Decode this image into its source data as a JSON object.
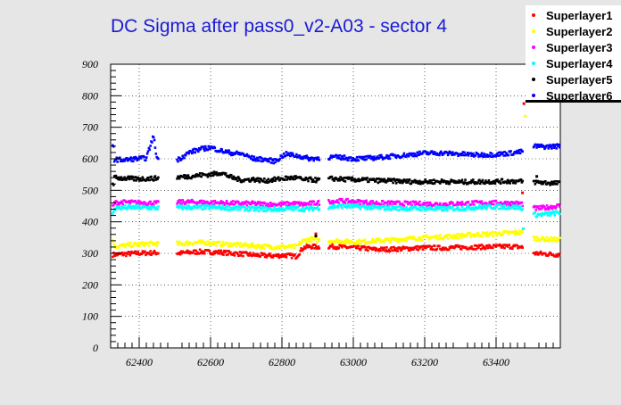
{
  "chart_data": {
    "type": "scatter",
    "title": "DC Sigma after pass0_v2-A03 - sector 4",
    "xlabel": "",
    "ylabel": "",
    "xlim": [
      62320,
      63580
    ],
    "ylim": [
      0,
      900
    ],
    "x_ticks": [
      "62400",
      "62600",
      "62800",
      "63000",
      "63200",
      "63400"
    ],
    "y_ticks": [
      "0",
      "100",
      "200",
      "300",
      "400",
      "500",
      "600",
      "700",
      "800",
      "900"
    ],
    "grid": true,
    "legend_position": "top-right",
    "gaps": [
      [
        62455,
        62505
      ],
      [
        62905,
        62930
      ],
      [
        63475,
        63505
      ]
    ],
    "series": [
      {
        "name": "Superlayer1",
        "color": "#ff0000",
        "points": [
          [
            62330,
            296
          ],
          [
            62360,
            298
          ],
          [
            62390,
            300
          ],
          [
            62420,
            301
          ],
          [
            62450,
            302
          ],
          [
            62510,
            300
          ],
          [
            62540,
            303
          ],
          [
            62570,
            305
          ],
          [
            62600,
            304
          ],
          [
            62630,
            303
          ],
          [
            62660,
            300
          ],
          [
            62690,
            298
          ],
          [
            62720,
            295
          ],
          [
            62750,
            293
          ],
          [
            62780,
            292
          ],
          [
            62810,
            294
          ],
          [
            62840,
            290
          ],
          [
            62860,
            318
          ],
          [
            62880,
            322
          ],
          [
            62900,
            320
          ],
          [
            62940,
            322
          ],
          [
            62970,
            320
          ],
          [
            63000,
            318
          ],
          [
            63030,
            316
          ],
          [
            63060,
            312
          ],
          [
            63100,
            313
          ],
          [
            63150,
            315
          ],
          [
            63200,
            318
          ],
          [
            63250,
            317
          ],
          [
            63300,
            319
          ],
          [
            63350,
            320
          ],
          [
            63400,
            321
          ],
          [
            63440,
            322
          ],
          [
            63470,
            320
          ],
          [
            63510,
            300
          ],
          [
            63540,
            298
          ],
          [
            63570,
            296
          ]
        ]
      },
      {
        "name": "Superlayer2",
        "color": "#ffff00",
        "points": [
          [
            62330,
            322
          ],
          [
            62360,
            325
          ],
          [
            62390,
            328
          ],
          [
            62420,
            330
          ],
          [
            62450,
            331
          ],
          [
            62510,
            330
          ],
          [
            62540,
            333
          ],
          [
            62570,
            334
          ],
          [
            62600,
            333
          ],
          [
            62630,
            330
          ],
          [
            62660,
            328
          ],
          [
            62690,
            326
          ],
          [
            62720,
            324
          ],
          [
            62750,
            322
          ],
          [
            62780,
            320
          ],
          [
            62810,
            321
          ],
          [
            62840,
            320
          ],
          [
            62860,
            340
          ],
          [
            62880,
            345
          ],
          [
            62900,
            342
          ],
          [
            62940,
            340
          ],
          [
            62970,
            338
          ],
          [
            63000,
            336
          ],
          [
            63030,
            337
          ],
          [
            63060,
            340
          ],
          [
            63100,
            342
          ],
          [
            63150,
            346
          ],
          [
            63200,
            350
          ],
          [
            63250,
            352
          ],
          [
            63300,
            356
          ],
          [
            63350,
            360
          ],
          [
            63400,
            362
          ],
          [
            63440,
            365
          ],
          [
            63470,
            366
          ],
          [
            63510,
            347
          ],
          [
            63540,
            345
          ],
          [
            63570,
            343
          ]
        ]
      },
      {
        "name": "Superlayer3",
        "color": "#ff00ff",
        "points": [
          [
            62330,
            460
          ],
          [
            62360,
            462
          ],
          [
            62390,
            461
          ],
          [
            62420,
            460
          ],
          [
            62450,
            459
          ],
          [
            62510,
            462
          ],
          [
            62540,
            463
          ],
          [
            62570,
            462
          ],
          [
            62600,
            461
          ],
          [
            62630,
            460
          ],
          [
            62660,
            459
          ],
          [
            62690,
            458
          ],
          [
            62720,
            458
          ],
          [
            62750,
            456
          ],
          [
            62780,
            455
          ],
          [
            62810,
            456
          ],
          [
            62840,
            458
          ],
          [
            62860,
            455
          ],
          [
            62880,
            458
          ],
          [
            62900,
            460
          ],
          [
            62940,
            465
          ],
          [
            62970,
            466
          ],
          [
            63000,
            464
          ],
          [
            63030,
            462
          ],
          [
            63060,
            460
          ],
          [
            63100,
            459
          ],
          [
            63150,
            458
          ],
          [
            63200,
            457
          ],
          [
            63250,
            456
          ],
          [
            63300,
            458
          ],
          [
            63350,
            460
          ],
          [
            63400,
            460
          ],
          [
            63440,
            459
          ],
          [
            63470,
            458
          ],
          [
            63510,
            442
          ],
          [
            63540,
            445
          ],
          [
            63570,
            450
          ]
        ]
      },
      {
        "name": "Superlayer4",
        "color": "#00ffff",
        "points": [
          [
            62330,
            444
          ],
          [
            62360,
            445
          ],
          [
            62390,
            446
          ],
          [
            62420,
            445
          ],
          [
            62450,
            444
          ],
          [
            62510,
            445
          ],
          [
            62540,
            446
          ],
          [
            62570,
            445
          ],
          [
            62600,
            446
          ],
          [
            62630,
            445
          ],
          [
            62660,
            444
          ],
          [
            62690,
            443
          ],
          [
            62720,
            441
          ],
          [
            62750,
            440
          ],
          [
            62780,
            440
          ],
          [
            62810,
            441
          ],
          [
            62840,
            443
          ],
          [
            62860,
            440
          ],
          [
            62880,
            442
          ],
          [
            62900,
            444
          ],
          [
            62940,
            448
          ],
          [
            62970,
            450
          ],
          [
            63000,
            449
          ],
          [
            63030,
            447
          ],
          [
            63060,
            445
          ],
          [
            63100,
            444
          ],
          [
            63150,
            443
          ],
          [
            63200,
            442
          ],
          [
            63250,
            441
          ],
          [
            63300,
            443
          ],
          [
            63350,
            446
          ],
          [
            63400,
            448
          ],
          [
            63440,
            447
          ],
          [
            63470,
            445
          ],
          [
            63510,
            422
          ],
          [
            63540,
            424
          ],
          [
            63570,
            428
          ]
        ]
      },
      {
        "name": "Superlayer5",
        "color": "#000000",
        "points": [
          [
            62330,
            540
          ],
          [
            62360,
            538
          ],
          [
            62390,
            536
          ],
          [
            62420,
            537
          ],
          [
            62450,
            538
          ],
          [
            62510,
            542
          ],
          [
            62540,
            544
          ],
          [
            62570,
            548
          ],
          [
            62600,
            550
          ],
          [
            62630,
            556
          ],
          [
            62660,
            540
          ],
          [
            62690,
            532
          ],
          [
            62720,
            535
          ],
          [
            62750,
            530
          ],
          [
            62780,
            534
          ],
          [
            62810,
            538
          ],
          [
            62840,
            540
          ],
          [
            62860,
            533
          ],
          [
            62880,
            534
          ],
          [
            62900,
            532
          ],
          [
            62940,
            537
          ],
          [
            62970,
            535
          ],
          [
            63000,
            534
          ],
          [
            63030,
            533
          ],
          [
            63060,
            531
          ],
          [
            63100,
            530
          ],
          [
            63150,
            528
          ],
          [
            63200,
            527
          ],
          [
            63250,
            528
          ],
          [
            63300,
            526
          ],
          [
            63350,
            527
          ],
          [
            63400,
            528
          ],
          [
            63440,
            529
          ],
          [
            63470,
            528
          ],
          [
            63510,
            526
          ],
          [
            63540,
            524
          ],
          [
            63570,
            522
          ]
        ]
      },
      {
        "name": "Superlayer6",
        "color": "#0000ff",
        "points": [
          [
            62330,
            598
          ],
          [
            62360,
            596
          ],
          [
            62390,
            600
          ],
          [
            62420,
            602
          ],
          [
            62450,
            600
          ],
          [
            62440,
            672
          ],
          [
            62510,
            598
          ],
          [
            62540,
            620
          ],
          [
            62570,
            630
          ],
          [
            62600,
            636
          ],
          [
            62630,
            625
          ],
          [
            62660,
            618
          ],
          [
            62690,
            615
          ],
          [
            62720,
            600
          ],
          [
            62750,
            598
          ],
          [
            62780,
            592
          ],
          [
            62810,
            615
          ],
          [
            62840,
            610
          ],
          [
            62860,
            605
          ],
          [
            62880,
            600
          ],
          [
            62900,
            602
          ],
          [
            62940,
            605
          ],
          [
            62970,
            604
          ],
          [
            63000,
            600
          ],
          [
            63030,
            601
          ],
          [
            63060,
            603
          ],
          [
            63100,
            607
          ],
          [
            63150,
            612
          ],
          [
            63200,
            618
          ],
          [
            63250,
            618
          ],
          [
            63300,
            615
          ],
          [
            63350,
            612
          ],
          [
            63400,
            614
          ],
          [
            63440,
            618
          ],
          [
            63470,
            622
          ],
          [
            63510,
            640
          ],
          [
            63540,
            638
          ],
          [
            63570,
            640
          ]
        ]
      }
    ],
    "outliers": [
      {
        "series": "Superlayer1",
        "x": 62895,
        "y": 362
      },
      {
        "series": "Superlayer1",
        "x": 63478,
        "y": 775
      },
      {
        "series": "Superlayer1",
        "x": 63474,
        "y": 492
      },
      {
        "series": "Superlayer2",
        "x": 63482,
        "y": 735
      },
      {
        "series": "Superlayer4",
        "x": 63476,
        "y": 378
      },
      {
        "series": "Superlayer5",
        "x": 62895,
        "y": 355
      },
      {
        "series": "Superlayer5",
        "x": 63514,
        "y": 544
      }
    ]
  }
}
